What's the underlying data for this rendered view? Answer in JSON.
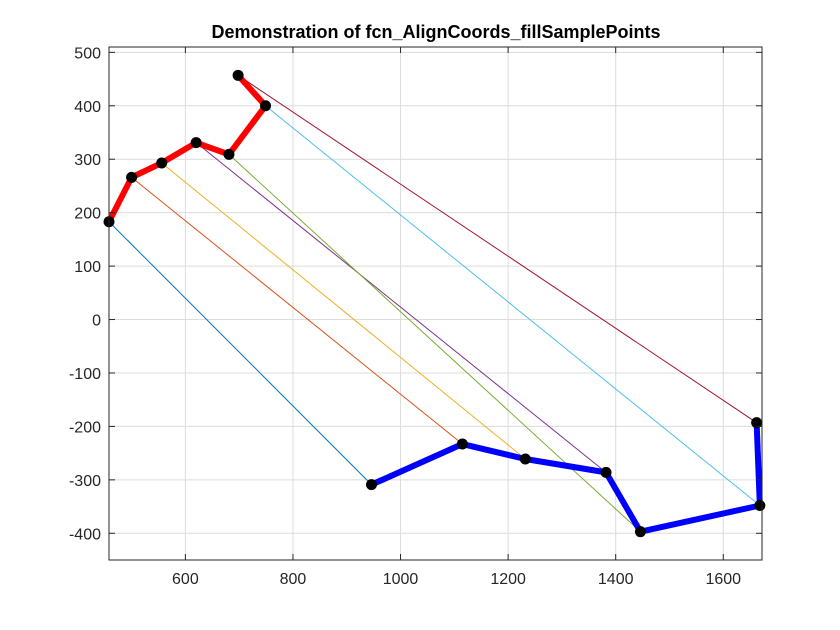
{
  "chart_data": {
    "type": "line",
    "title": "Demonstration of fcn_AlignCoords_fillSamplePoints",
    "xlabel": "",
    "ylabel": "",
    "xlim": [
      458,
      1672
    ],
    "ylim": [
      -450,
      510
    ],
    "xticks": [
      600,
      800,
      1000,
      1200,
      1400,
      1600
    ],
    "yticks": [
      500,
      400,
      300,
      200,
      100,
      0,
      -100,
      -200,
      -300,
      -400
    ],
    "grid": true,
    "legend": "none",
    "series": [
      {
        "color": "#ff0000",
        "points": [
          [
            458,
            183
          ],
          [
            500,
            266
          ],
          [
            556,
            293
          ],
          [
            620,
            331
          ],
          [
            681,
            309
          ],
          [
            749,
            400
          ],
          [
            698,
            457
          ]
        ]
      },
      {
        "color": "#0000ff",
        "points": [
          [
            946,
            -309
          ],
          [
            1115,
            -233
          ],
          [
            1232,
            -261
          ],
          [
            1382,
            -286
          ],
          [
            1446,
            -397
          ],
          [
            1668,
            -348
          ],
          [
            1662,
            -193
          ]
        ]
      }
    ],
    "connectors": [
      {
        "from": [
          458,
          183
        ],
        "to": [
          946,
          -309
        ],
        "color": "#0072bd"
      },
      {
        "from": [
          500,
          266
        ],
        "to": [
          1115,
          -233
        ],
        "color": "#d95319"
      },
      {
        "from": [
          556,
          293
        ],
        "to": [
          1232,
          -261
        ],
        "color": "#edb120"
      },
      {
        "from": [
          620,
          331
        ],
        "to": [
          1382,
          -286
        ],
        "color": "#7e2f8e"
      },
      {
        "from": [
          681,
          309
        ],
        "to": [
          1446,
          -397
        ],
        "color": "#77ac30"
      },
      {
        "from": [
          749,
          400
        ],
        "to": [
          1668,
          -348
        ],
        "color": "#4dbeee"
      },
      {
        "from": [
          698,
          457
        ],
        "to": [
          1662,
          -193
        ],
        "color": "#a2142f"
      }
    ],
    "marker_color": "#000000"
  }
}
